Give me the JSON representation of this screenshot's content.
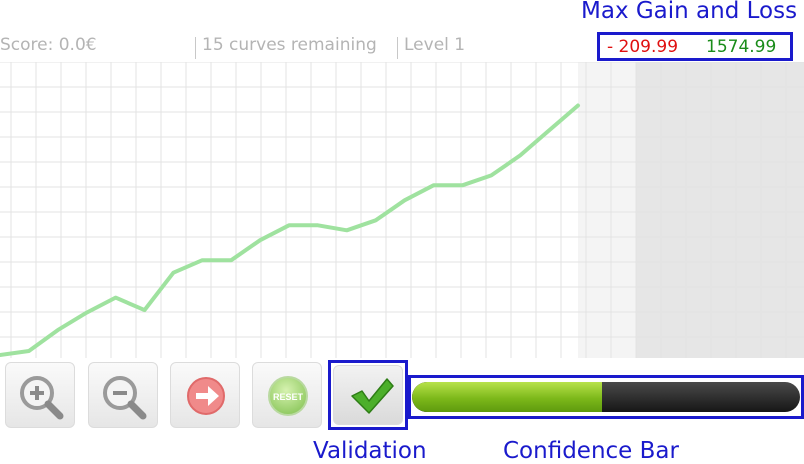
{
  "status_bar": {
    "score": "Score: 0.0€",
    "curves_remaining": "15 curves remaining",
    "level": "Level 1"
  },
  "max_gain_loss": {
    "annotation": "Max Gain and Loss",
    "loss": "- 209.99",
    "gain": "1574.99",
    "loss_color": "#e01010",
    "gain_color": "#1a8c1a"
  },
  "chart_data": {
    "type": "line",
    "grid": true,
    "series": [
      {
        "color": "#9fe29f",
        "x": [
          0,
          1,
          2,
          3,
          4,
          5,
          6,
          7,
          8,
          9,
          10,
          11,
          12,
          13,
          14,
          15,
          16,
          17,
          18,
          19,
          20
        ],
        "values": [
          0,
          0.8,
          5,
          8.5,
          11.5,
          9,
          16.5,
          19,
          19,
          23,
          26,
          26,
          25,
          27,
          31,
          34,
          34,
          36,
          40,
          45,
          50
        ]
      }
    ],
    "xlim": [
      0,
      40
    ],
    "ylim": [
      0,
      59
    ],
    "shaded_region_start_x": 20,
    "shaded_dark_start_x": 22
  },
  "controls": {
    "zoom_in_icon": "zoom-in-icon",
    "zoom_out_icon": "zoom-out-icon",
    "next_icon": "arrow-right-icon",
    "reset_label": "RESET",
    "validate_icon": "check-icon",
    "validation_annotation": "Validation"
  },
  "confidence": {
    "annotation": "Confidence Bar",
    "level": 0.49
  }
}
